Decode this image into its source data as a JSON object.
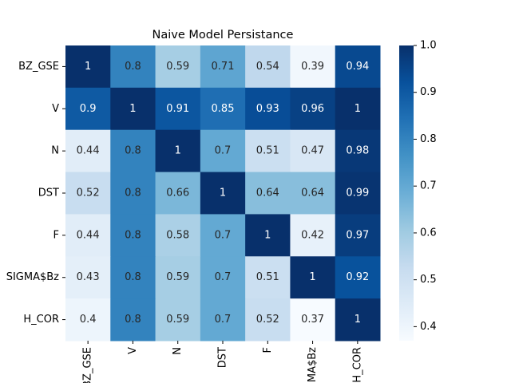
{
  "chart_data": {
    "type": "heatmap",
    "title": "Naive Model Persistance",
    "rows": [
      "BZ_GSE",
      "V",
      "N",
      "DST",
      "F",
      "SIGMA$Bz",
      "H_COR"
    ],
    "columns": [
      "BZ_GSE",
      "V",
      "N",
      "DST",
      "F",
      "SIGMA$Bz",
      "H_COR"
    ],
    "values": [
      [
        1,
        0.8,
        0.59,
        0.71,
        0.54,
        0.39,
        0.94
      ],
      [
        0.9,
        1,
        0.91,
        0.85,
        0.93,
        0.96,
        1
      ],
      [
        0.44,
        0.8,
        1,
        0.7,
        0.51,
        0.47,
        0.98
      ],
      [
        0.52,
        0.8,
        0.66,
        1,
        0.64,
        0.64,
        0.99
      ],
      [
        0.44,
        0.8,
        0.58,
        0.7,
        1,
        0.42,
        0.97
      ],
      [
        0.43,
        0.8,
        0.59,
        0.7,
        0.51,
        1,
        0.92
      ],
      [
        0.4,
        0.8,
        0.59,
        0.7,
        0.52,
        0.37,
        1
      ]
    ],
    "colormap": "Blues",
    "clim": [
      0.37,
      1
    ],
    "cticks": [
      0.4,
      0.5,
      0.6,
      0.7,
      0.8,
      0.9,
      {
        "value": 1,
        "label": "1.0"
      }
    ]
  }
}
